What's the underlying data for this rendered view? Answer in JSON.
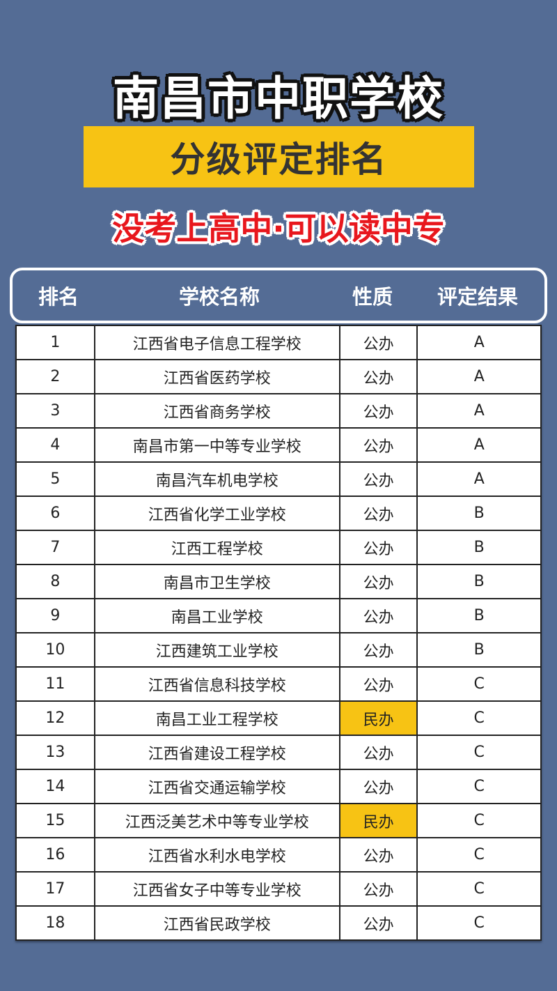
{
  "title": "南昌市中职学校",
  "banner": "分级评定排名",
  "subtitle": "没考上高中·可以读中专",
  "colors": {
    "background": "#546c95",
    "banner": "#f7c314",
    "subtitle": "#e8171d",
    "private_highlight": "#f7c314"
  },
  "table": {
    "headers": [
      "排名",
      "学校名称",
      "性质",
      "评定结果"
    ],
    "rows": [
      [
        "1",
        "江西省电子信息工程学校",
        "公办",
        "A"
      ],
      [
        "2",
        "江西省医药学校",
        "公办",
        "A"
      ],
      [
        "3",
        "江西省商务学校",
        "公办",
        "A"
      ],
      [
        "4",
        "南昌市第一中等专业学校",
        "公办",
        "A"
      ],
      [
        "5",
        "南昌汽车机电学校",
        "公办",
        "A"
      ],
      [
        "6",
        "江西省化学工业学校",
        "公办",
        "B"
      ],
      [
        "7",
        "江西工程学校",
        "公办",
        "B"
      ],
      [
        "8",
        "南昌市卫生学校",
        "公办",
        "B"
      ],
      [
        "9",
        "南昌工业学校",
        "公办",
        "B"
      ],
      [
        "10",
        "江西建筑工业学校",
        "公办",
        "B"
      ],
      [
        "11",
        "江西省信息科技学校",
        "公办",
        "C"
      ],
      [
        "12",
        "南昌工业工程学校",
        "民办",
        "C"
      ],
      [
        "13",
        "江西省建设工程学校",
        "公办",
        "C"
      ],
      [
        "14",
        "江西省交通运输学校",
        "公办",
        "C"
      ],
      [
        "15",
        "江西泛美艺术中等专业学校",
        "民办",
        "C"
      ],
      [
        "16",
        "江西省水利水电学校",
        "公办",
        "C"
      ],
      [
        "17",
        "江西省女子中等专业学校",
        "公办",
        "C"
      ],
      [
        "18",
        "江西省民政学校",
        "公办",
        "C"
      ]
    ]
  }
}
